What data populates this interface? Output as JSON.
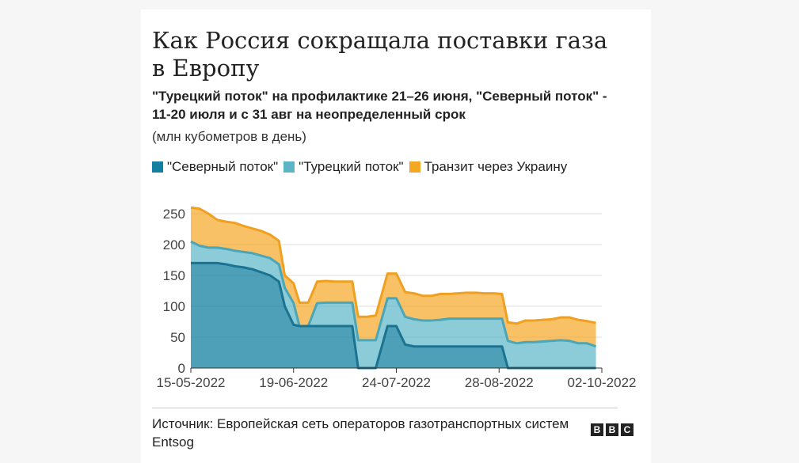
{
  "title": "Как Россия сокращала поставки газа в Европу",
  "subtitle": "\"Турецкий поток\" на профилактике 21–26 июня, \"Северный поток\" - 11-20 июля и с 31 авг на неопределенный срок",
  "unit": "(млн кубометров в день)",
  "source": "Источник: Европейская сеть операторов газотранспортных систем Entsog",
  "logo_letters": [
    "B",
    "B",
    "C"
  ],
  "colors": {
    "nord_stream": "#1380a1",
    "turk_stream": "#5bb5c7",
    "ukraine": "#f5a623"
  },
  "chart_data": {
    "type": "area",
    "stacked": true,
    "x_start": "2022-05-15",
    "x_end": "2022-10-02",
    "ylim": [
      0,
      250
    ],
    "yticks": [
      0,
      50,
      100,
      150,
      200,
      250
    ],
    "xticks": [
      "15-05-2022",
      "19-06-2022",
      "24-07-2022",
      "28-08-2022",
      "02-10-2022"
    ],
    "grid": true,
    "legend_position": "top",
    "x": [
      "2022-05-15",
      "2022-05-18",
      "2022-05-21",
      "2022-05-24",
      "2022-05-27",
      "2022-05-30",
      "2022-06-02",
      "2022-06-05",
      "2022-06-08",
      "2022-06-11",
      "2022-06-14",
      "2022-06-16",
      "2022-06-19",
      "2022-06-21",
      "2022-06-24",
      "2022-06-27",
      "2022-06-30",
      "2022-07-03",
      "2022-07-06",
      "2022-07-09",
      "2022-07-11",
      "2022-07-14",
      "2022-07-17",
      "2022-07-21",
      "2022-07-24",
      "2022-07-27",
      "2022-07-30",
      "2022-08-02",
      "2022-08-05",
      "2022-08-08",
      "2022-08-11",
      "2022-08-14",
      "2022-08-17",
      "2022-08-20",
      "2022-08-23",
      "2022-08-26",
      "2022-08-29",
      "2022-08-31",
      "2022-09-03",
      "2022-09-06",
      "2022-09-09",
      "2022-09-12",
      "2022-09-15",
      "2022-09-18",
      "2022-09-21",
      "2022-09-24",
      "2022-09-27",
      "2022-09-30"
    ],
    "series": [
      {
        "name": "\"Северный поток\"",
        "values": [
          170,
          170,
          170,
          170,
          168,
          165,
          163,
          160,
          155,
          150,
          140,
          100,
          70,
          68,
          68,
          68,
          68,
          68,
          68,
          68,
          0,
          0,
          0,
          68,
          68,
          38,
          35,
          35,
          35,
          35,
          35,
          35,
          35,
          35,
          35,
          35,
          35,
          0,
          0,
          0,
          0,
          0,
          0,
          0,
          0,
          0,
          0,
          0
        ]
      },
      {
        "name": "\"Турецкий поток\"",
        "values": [
          35,
          28,
          25,
          25,
          25,
          25,
          25,
          26,
          27,
          28,
          28,
          30,
          35,
          0,
          0,
          37,
          38,
          38,
          38,
          38,
          45,
          45,
          45,
          45,
          45,
          45,
          44,
          42,
          42,
          43,
          45,
          45,
          45,
          45,
          45,
          45,
          45,
          44,
          40,
          42,
          42,
          43,
          44,
          45,
          44,
          40,
          40,
          35
        ]
      },
      {
        "name": "Транзит через Украину",
        "values": [
          55,
          60,
          55,
          45,
          44,
          45,
          42,
          40,
          40,
          38,
          38,
          20,
          32,
          38,
          38,
          35,
          35,
          34,
          34,
          34,
          38,
          38,
          40,
          40,
          40,
          40,
          42,
          40,
          40,
          42,
          40,
          41,
          42,
          42,
          41,
          41,
          40,
          30,
          32,
          35,
          35,
          35,
          35,
          37,
          38,
          38,
          36,
          38
        ]
      }
    ]
  }
}
